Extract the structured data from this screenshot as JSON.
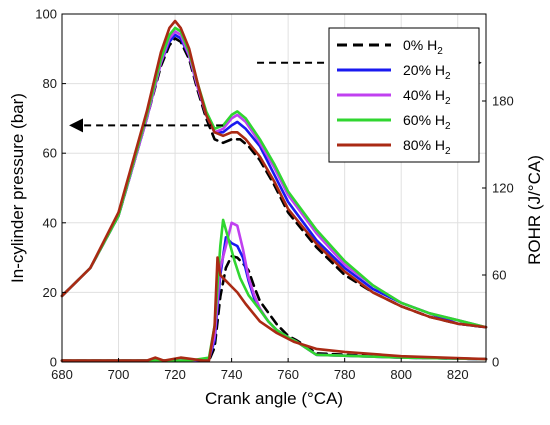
{
  "chart_data": {
    "type": "line",
    "xlabel": "Crank angle (°CA)",
    "ylabel_left": "In-cylinder pressure (bar)",
    "ylabel_right": "ROHR (J/°CA)",
    "xlim": [
      680,
      830
    ],
    "ylim_left": [
      0,
      100
    ],
    "ylim_right": [
      0,
      240
    ],
    "x_ticks": [
      680,
      700,
      720,
      740,
      760,
      780,
      800,
      820
    ],
    "y_ticks_left": [
      0,
      20,
      40,
      60,
      80,
      100
    ],
    "y_ticks_right": [
      0,
      60,
      120,
      180
    ],
    "grid": true,
    "legend_position": "top-right",
    "series": [
      {
        "name": "0% H2",
        "name_main": "0% H",
        "name_sub": "2",
        "color": "#000000",
        "dash": true,
        "pressure": [
          [
            680,
            19
          ],
          [
            690,
            27
          ],
          [
            700,
            42
          ],
          [
            710,
            70
          ],
          [
            715,
            85
          ],
          [
            718,
            91
          ],
          [
            720,
            93
          ],
          [
            722,
            92
          ],
          [
            725,
            87
          ],
          [
            728,
            78
          ],
          [
            731,
            70
          ],
          [
            734,
            64
          ],
          [
            737,
            63
          ],
          [
            740,
            64
          ],
          [
            743,
            64
          ],
          [
            746,
            62
          ],
          [
            750,
            58
          ],
          [
            755,
            51
          ],
          [
            760,
            43
          ],
          [
            770,
            33
          ],
          [
            780,
            25
          ],
          [
            790,
            20
          ],
          [
            800,
            16
          ],
          [
            810,
            13
          ],
          [
            820,
            11
          ],
          [
            830,
            10
          ]
        ],
        "rohr": [
          [
            680,
            1
          ],
          [
            710,
            1
          ],
          [
            725,
            1
          ],
          [
            732,
            1
          ],
          [
            734,
            10
          ],
          [
            736,
            45
          ],
          [
            738,
            65
          ],
          [
            740,
            73
          ],
          [
            742,
            72
          ],
          [
            744,
            68
          ],
          [
            746,
            63
          ],
          [
            748,
            52
          ],
          [
            750,
            42
          ],
          [
            753,
            34
          ],
          [
            756,
            26
          ],
          [
            760,
            18
          ],
          [
            763,
            15
          ],
          [
            770,
            6
          ],
          [
            800,
            3
          ],
          [
            830,
            2
          ]
        ]
      },
      {
        "name": "20% H2",
        "name_main": "20% H",
        "name_sub": "2",
        "color": "#1a1af0",
        "dash": false,
        "pressure": [
          [
            680,
            19
          ],
          [
            690,
            27
          ],
          [
            700,
            42
          ],
          [
            710,
            70
          ],
          [
            715,
            86
          ],
          [
            718,
            92
          ],
          [
            720,
            94
          ],
          [
            722,
            93
          ],
          [
            725,
            88
          ],
          [
            728,
            79
          ],
          [
            731,
            71
          ],
          [
            734,
            66
          ],
          [
            737,
            66
          ],
          [
            740,
            68
          ],
          [
            742,
            69
          ],
          [
            745,
            67
          ],
          [
            750,
            62
          ],
          [
            755,
            54
          ],
          [
            760,
            46
          ],
          [
            770,
            35
          ],
          [
            780,
            27
          ],
          [
            790,
            21
          ],
          [
            800,
            17
          ],
          [
            810,
            14
          ],
          [
            820,
            11
          ],
          [
            830,
            10
          ]
        ],
        "rohr": [
          [
            680,
            1
          ],
          [
            710,
            1
          ],
          [
            725,
            1
          ],
          [
            732,
            2
          ],
          [
            734,
            15
          ],
          [
            736,
            60
          ],
          [
            738,
            86
          ],
          [
            740,
            82
          ],
          [
            742,
            80
          ],
          [
            744,
            72
          ],
          [
            746,
            56
          ],
          [
            748,
            44
          ],
          [
            750,
            36
          ],
          [
            753,
            28
          ],
          [
            756,
            22
          ],
          [
            760,
            17
          ],
          [
            763,
            14
          ],
          [
            770,
            5
          ],
          [
            800,
            3
          ],
          [
            830,
            2
          ]
        ]
      },
      {
        "name": "40% H2",
        "name_main": "40% H",
        "name_sub": "2",
        "color": "#c040f0",
        "dash": false,
        "pressure": [
          [
            680,
            19
          ],
          [
            690,
            27
          ],
          [
            700,
            42
          ],
          [
            710,
            70
          ],
          [
            715,
            86
          ],
          [
            718,
            93
          ],
          [
            720,
            95
          ],
          [
            722,
            94
          ],
          [
            725,
            88
          ],
          [
            728,
            79
          ],
          [
            731,
            71
          ],
          [
            734,
            66
          ],
          [
            737,
            67
          ],
          [
            740,
            70
          ],
          [
            742,
            71
          ],
          [
            745,
            69
          ],
          [
            750,
            63
          ],
          [
            755,
            56
          ],
          [
            760,
            48
          ],
          [
            770,
            37
          ],
          [
            780,
            28
          ],
          [
            790,
            22
          ],
          [
            800,
            17
          ],
          [
            810,
            14
          ],
          [
            820,
            12
          ],
          [
            830,
            10
          ]
        ],
        "rohr": [
          [
            680,
            1
          ],
          [
            710,
            1
          ],
          [
            725,
            1
          ],
          [
            732,
            2
          ],
          [
            734,
            18
          ],
          [
            736,
            65
          ],
          [
            738,
            80
          ],
          [
            740,
            96
          ],
          [
            742,
            94
          ],
          [
            744,
            78
          ],
          [
            746,
            58
          ],
          [
            748,
            46
          ],
          [
            750,
            37
          ],
          [
            753,
            28
          ],
          [
            756,
            22
          ],
          [
            760,
            17
          ],
          [
            763,
            14
          ],
          [
            770,
            5
          ],
          [
            800,
            3
          ],
          [
            830,
            2
          ]
        ]
      },
      {
        "name": "60% H2",
        "name_main": "60% H",
        "name_sub": "2",
        "color": "#30d630",
        "dash": false,
        "pressure": [
          [
            680,
            19
          ],
          [
            690,
            27
          ],
          [
            700,
            42
          ],
          [
            710,
            71
          ],
          [
            715,
            87
          ],
          [
            718,
            94
          ],
          [
            720,
            96
          ],
          [
            722,
            95
          ],
          [
            725,
            89
          ],
          [
            728,
            80
          ],
          [
            731,
            72
          ],
          [
            734,
            67
          ],
          [
            737,
            68
          ],
          [
            740,
            71
          ],
          [
            742,
            72
          ],
          [
            745,
            70
          ],
          [
            750,
            64
          ],
          [
            755,
            57
          ],
          [
            760,
            49
          ],
          [
            770,
            38
          ],
          [
            780,
            29
          ],
          [
            790,
            22
          ],
          [
            800,
            17
          ],
          [
            810,
            14
          ],
          [
            820,
            12
          ],
          [
            830,
            10
          ]
        ],
        "rohr": [
          [
            680,
            1
          ],
          [
            710,
            1
          ],
          [
            725,
            1
          ],
          [
            732,
            3
          ],
          [
            734,
            25
          ],
          [
            736,
            80
          ],
          [
            737,
            98
          ],
          [
            739,
            84
          ],
          [
            741,
            70
          ],
          [
            743,
            58
          ],
          [
            746,
            46
          ],
          [
            750,
            36
          ],
          [
            753,
            28
          ],
          [
            756,
            22
          ],
          [
            760,
            17
          ],
          [
            763,
            14
          ],
          [
            770,
            5
          ],
          [
            800,
            3
          ],
          [
            830,
            2
          ]
        ]
      },
      {
        "name": "80% H2",
        "name_main": "80% H",
        "name_sub": "2",
        "color": "#aa2a14",
        "dash": false,
        "pressure": [
          [
            680,
            19
          ],
          [
            690,
            27
          ],
          [
            700,
            43
          ],
          [
            710,
            72
          ],
          [
            715,
            89
          ],
          [
            718,
            96
          ],
          [
            720,
            98
          ],
          [
            722,
            96
          ],
          [
            725,
            90
          ],
          [
            728,
            80
          ],
          [
            731,
            71
          ],
          [
            734,
            66
          ],
          [
            737,
            65
          ],
          [
            740,
            66
          ],
          [
            742,
            66
          ],
          [
            745,
            64
          ],
          [
            750,
            59
          ],
          [
            755,
            52
          ],
          [
            760,
            44
          ],
          [
            770,
            34
          ],
          [
            780,
            26
          ],
          [
            790,
            20
          ],
          [
            800,
            16
          ],
          [
            810,
            13
          ],
          [
            820,
            11
          ],
          [
            830,
            10
          ]
        ],
        "rohr": [
          [
            680,
            1
          ],
          [
            710,
            1
          ],
          [
            713,
            3
          ],
          [
            716,
            1
          ],
          [
            722,
            3
          ],
          [
            730,
            1
          ],
          [
            732,
            1
          ],
          [
            734,
            25
          ],
          [
            735,
            72
          ],
          [
            736,
            60
          ],
          [
            738,
            56
          ],
          [
            740,
            52
          ],
          [
            742,
            48
          ],
          [
            745,
            40
          ],
          [
            750,
            28
          ],
          [
            756,
            20
          ],
          [
            762,
            14
          ],
          [
            770,
            9
          ],
          [
            780,
            7
          ],
          [
            800,
            4
          ],
          [
            830,
            2
          ]
        ]
      }
    ],
    "annotations": [
      {
        "type": "arrow",
        "points_to": "left-axis",
        "from": [
          737,
          68
        ],
        "to": [
          683,
          68
        ]
      },
      {
        "type": "arrow",
        "points_to": "right-axis",
        "from": [
          749,
          86
        ],
        "to": [
          828,
          86
        ]
      }
    ]
  }
}
